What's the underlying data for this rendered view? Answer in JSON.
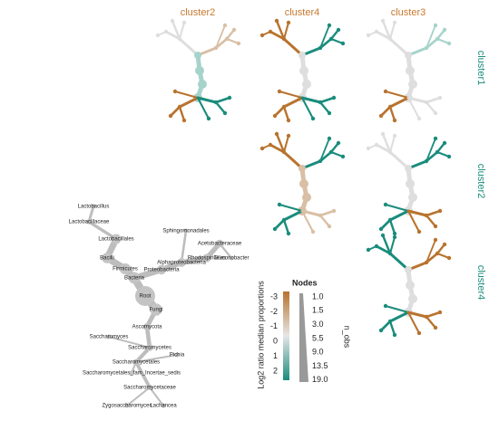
{
  "columns": [
    "cluster2",
    "cluster4",
    "cluster3"
  ],
  "rows": [
    "cluster1",
    "cluster2",
    "cluster4"
  ],
  "legend": {
    "title": "Nodes",
    "color_label": "Log2 ratio median proportions",
    "color_ticks": [
      "-3",
      "-2",
      "-1",
      "0",
      "1",
      "2"
    ],
    "size_label": "n_obs",
    "size_ticks": [
      "1.0",
      "1.5",
      "3.0",
      "5.5",
      "9.0",
      "13.5",
      "19.0"
    ]
  },
  "tree_labels": [
    "Root",
    "Fungi",
    "Bacteria",
    "Firmicutes",
    "Bacilli",
    "Lactobacillales",
    "Proteobacteria",
    "Alphaproteobacteria",
    "Rhodospirillales",
    "Acetobacteraceae",
    "Ascomycota",
    "Saccharomycetes",
    "Saccharomycetales",
    "Saccharomycetaceae",
    "Lactobacillaceae",
    "Lactobacillus",
    "Sphingomonadales",
    "Gluconobacter",
    "Saccharomyces",
    "Pichia",
    "Saccharomycetales_fam_Incertae_sedis",
    "Zygosaccharomyces",
    "Lachancea"
  ]
}
